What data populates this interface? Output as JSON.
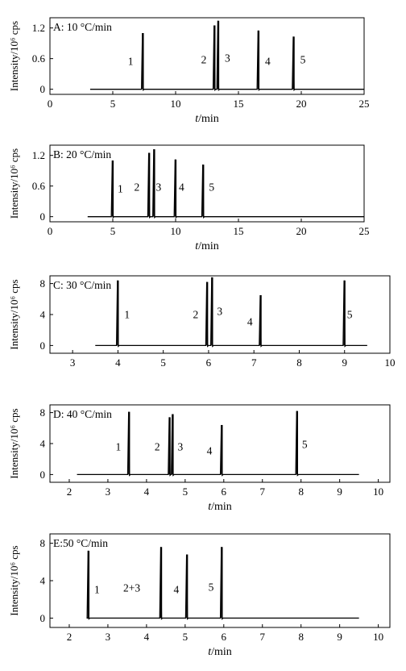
{
  "chart_data": [
    {
      "type": "line",
      "panel_label": "A: 10 °C/min",
      "ylabel": "Intensity/10⁶ cps",
      "xlabel_italic": "t",
      "xlabel_unit": "/min",
      "xlim": [
        0,
        25
      ],
      "xticks": [
        0,
        5,
        10,
        15,
        20,
        25
      ],
      "ylim": [
        -0.1,
        1.4
      ],
      "yticks": [
        0,
        0.6,
        1.2
      ],
      "ytick_labels": [
        "0",
        "0.6",
        "1.2"
      ],
      "trace_range": [
        3.2,
        25
      ],
      "peaks": [
        {
          "label": "1",
          "x": 7.4,
          "y": 1.1
        },
        {
          "label": "2",
          "x": 13.1,
          "y": 1.25
        },
        {
          "label": "3",
          "x": 13.4,
          "y": 1.34
        },
        {
          "label": "4",
          "x": 16.6,
          "y": 1.15
        },
        {
          "label": "5",
          "x": 19.4,
          "y": 1.03
        }
      ]
    },
    {
      "type": "line",
      "panel_label": "B: 20 °C/min",
      "ylabel": "Intensity/10⁶ cps",
      "xlabel_italic": "t",
      "xlabel_unit": "/min",
      "xlim": [
        0,
        25
      ],
      "xticks": [
        0,
        5,
        10,
        15,
        20,
        25
      ],
      "ylim": [
        -0.1,
        1.4
      ],
      "yticks": [
        0,
        0.6,
        1.2
      ],
      "ytick_labels": [
        "0",
        "0.6",
        "1.2"
      ],
      "trace_range": [
        3.0,
        25
      ],
      "peaks": [
        {
          "label": "1",
          "x": 5.0,
          "y": 1.1
        },
        {
          "label": "2",
          "x": 7.9,
          "y": 1.25
        },
        {
          "label": "3",
          "x": 8.3,
          "y": 1.32
        },
        {
          "label": "4",
          "x": 10.0,
          "y": 1.12
        },
        {
          "label": "5",
          "x": 12.2,
          "y": 1.02
        }
      ]
    },
    {
      "type": "line",
      "panel_label": "C: 30 °C/min",
      "ylabel": "Intensity/10⁶ cps",
      "xlabel_italic": "",
      "xlabel_unit": "",
      "xlim": [
        2.5,
        10
      ],
      "xticks": [
        3,
        4,
        5,
        6,
        7,
        8,
        9,
        10
      ],
      "ylim": [
        -1,
        9
      ],
      "yticks": [
        0,
        4,
        8
      ],
      "ytick_labels": [
        "0",
        "4",
        "8"
      ],
      "trace_range": [
        3.5,
        9.5
      ],
      "peaks": [
        {
          "label": "1",
          "x": 4.0,
          "y": 8.4
        },
        {
          "label": "2",
          "x": 5.97,
          "y": 8.2
        },
        {
          "label": "3",
          "x": 6.08,
          "y": 8.8
        },
        {
          "label": "4",
          "x": 7.15,
          "y": 6.5
        },
        {
          "label": "5",
          "x": 9.0,
          "y": 8.4
        }
      ]
    },
    {
      "type": "line",
      "panel_label": "D: 40 °C/min",
      "ylabel": "Intensity/10⁶ cps",
      "xlabel_italic": "t",
      "xlabel_unit": "/min",
      "xlim": [
        1.5,
        10.3
      ],
      "xticks": [
        2,
        3,
        4,
        5,
        6,
        7,
        8,
        9,
        10
      ],
      "ylim": [
        -1,
        9
      ],
      "yticks": [
        0,
        4,
        8
      ],
      "ytick_labels": [
        "0",
        "4",
        "8"
      ],
      "trace_range": [
        2.2,
        9.5
      ],
      "peaks": [
        {
          "label": "1",
          "x": 3.55,
          "y": 8.1
        },
        {
          "label": "2",
          "x": 4.6,
          "y": 7.4
        },
        {
          "label": "3",
          "x": 4.68,
          "y": 7.8
        },
        {
          "label": "4",
          "x": 5.95,
          "y": 6.4
        },
        {
          "label": "5",
          "x": 7.9,
          "y": 8.2
        }
      ]
    },
    {
      "type": "line",
      "panel_label": "E:50 °C/min",
      "ylabel": "Intensity/10⁶ cps",
      "xlabel_italic": "t",
      "xlabel_unit": "/min",
      "xlim": [
        1.5,
        10.3
      ],
      "xticks": [
        2,
        3,
        4,
        5,
        6,
        7,
        8,
        9,
        10
      ],
      "ylim": [
        -1,
        9
      ],
      "yticks": [
        0,
        4,
        8
      ],
      "ytick_labels": [
        "0",
        "4",
        "8"
      ],
      "trace_range": [
        2.5,
        9.5
      ],
      "peaks": [
        {
          "label": "1",
          "x": 2.5,
          "y": 7.2
        },
        {
          "label": "2+3",
          "x": 4.38,
          "y": 7.6
        },
        {
          "label": "4",
          "x": 5.05,
          "y": 6.8
        },
        {
          "label": "5",
          "x": 5.95,
          "y": 7.6
        }
      ]
    }
  ]
}
